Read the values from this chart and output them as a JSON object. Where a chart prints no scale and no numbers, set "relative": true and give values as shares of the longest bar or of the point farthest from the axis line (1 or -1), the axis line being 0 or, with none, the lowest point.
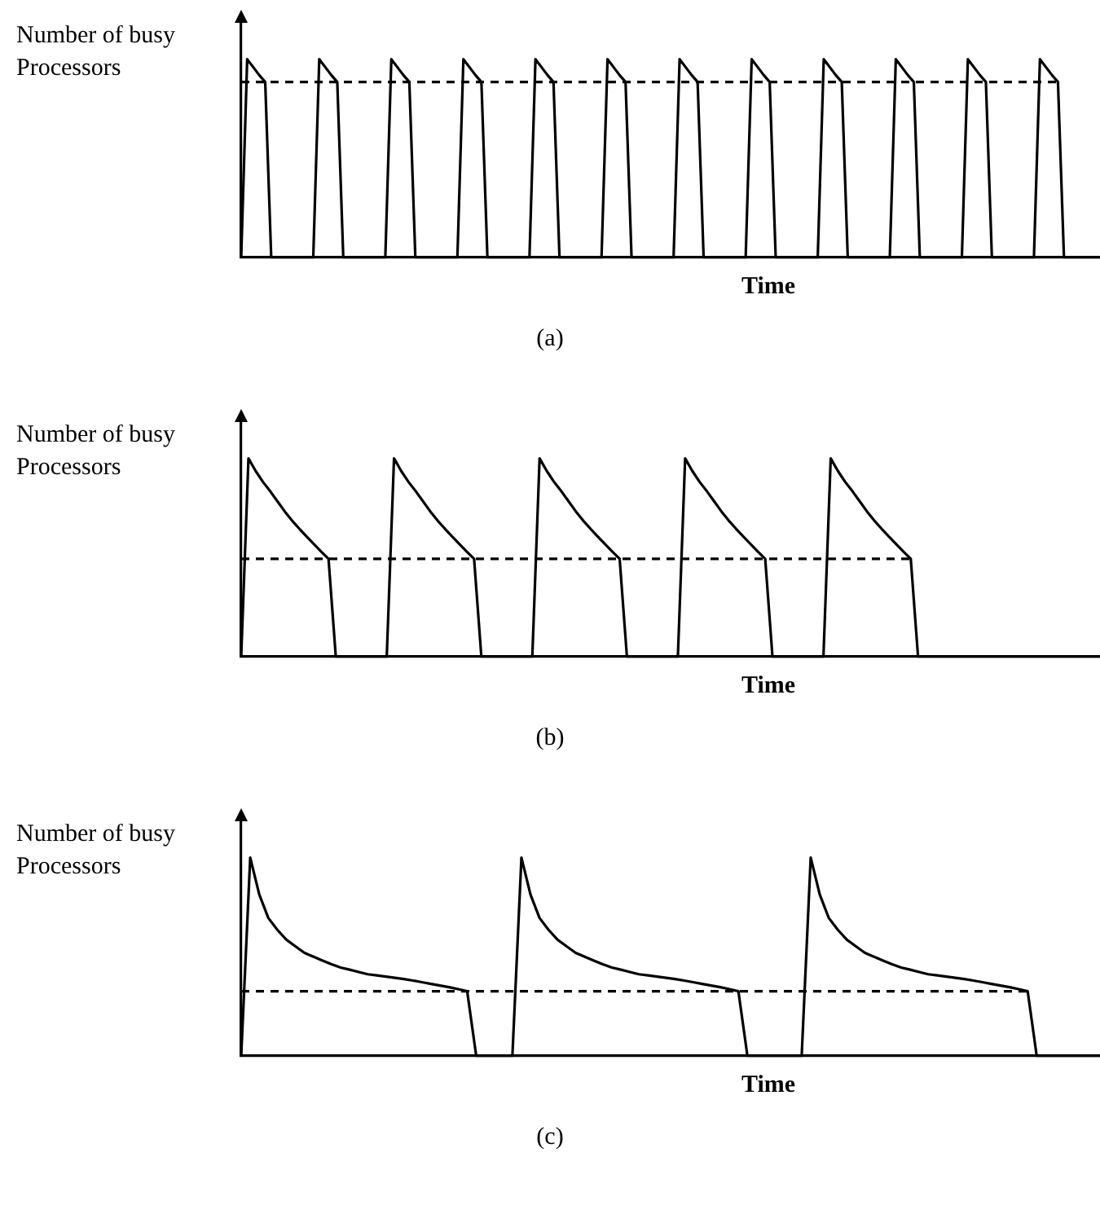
{
  "chart_data": [
    {
      "type": "line",
      "title": "(a)",
      "xlabel": "Time",
      "ylabel": "Number of busy Processors",
      "relative": true,
      "tick_labels": false,
      "grid": false,
      "legend": false,
      "marker": "none",
      "categories": [
        null,
        null,
        null,
        null,
        null,
        null,
        null,
        null,
        null,
        null,
        null,
        null,
        null,
        null,
        null,
        null,
        null,
        null,
        null,
        null,
        null,
        null,
        null,
        null,
        null,
        null,
        null,
        null,
        null,
        null,
        null,
        null,
        null,
        null,
        null,
        null,
        null,
        null,
        null,
        null,
        null,
        null,
        null,
        null,
        null,
        null,
        null,
        null,
        null,
        null,
        null,
        null,
        null,
        null,
        null,
        null,
        null,
        null,
        null,
        null,
        null,
        null,
        null,
        null,
        null,
        null,
        null,
        null,
        null,
        null,
        null,
        null,
        null,
        null,
        null,
        null,
        null,
        null,
        null,
        null,
        null,
        null,
        null,
        null,
        null,
        null,
        null,
        null,
        null,
        null,
        null,
        null,
        null,
        null,
        null,
        null,
        null,
        null,
        null,
        null,
        null,
        null,
        null,
        null,
        null,
        null,
        null,
        null,
        null,
        null,
        null,
        null,
        null,
        null,
        null,
        null,
        null,
        null,
        null,
        null,
        null,
        null,
        null,
        null,
        null,
        null,
        null,
        null,
        null,
        null,
        null,
        null,
        null,
        null,
        null,
        null,
        null,
        null,
        null,
        null,
        null,
        null,
        null,
        null
      ],
      "series": [
        {
          "color": "#000000",
          "line_style": "solid",
          "values": [
            0,
            1,
            0.96,
            0.92,
            0.885,
            0,
            0,
            0,
            0,
            0,
            0,
            0,
            0,
            1,
            0.96,
            0.92,
            0.885,
            0,
            0,
            0,
            0,
            0,
            0,
            0,
            0,
            1,
            0.96,
            0.92,
            0.885,
            0,
            0,
            0,
            0,
            0,
            0,
            0,
            0,
            1,
            0.96,
            0.92,
            0.885,
            0,
            0,
            0,
            0,
            0,
            0,
            0,
            0,
            1,
            0.96,
            0.92,
            0.885,
            0,
            0,
            0,
            0,
            0,
            0,
            0,
            0,
            1,
            0.96,
            0.92,
            0.885,
            0,
            0,
            0,
            0,
            0,
            0,
            0,
            0,
            1,
            0.96,
            0.92,
            0.885,
            0,
            0,
            0,
            0,
            0,
            0,
            0,
            0,
            1,
            0.96,
            0.92,
            0.885,
            0,
            0,
            0,
            0,
            0,
            0,
            0,
            0,
            1,
            0.96,
            0.92,
            0.885,
            0,
            0,
            0,
            0,
            0,
            0,
            0,
            0,
            1,
            0.96,
            0.92,
            0.885,
            0,
            0,
            0,
            0,
            0,
            0,
            0,
            0,
            1,
            0.96,
            0.92,
            0.885,
            0,
            0,
            0,
            0,
            0,
            0,
            0,
            0,
            1,
            0.96,
            0.92,
            0.885,
            0,
            0,
            0,
            0,
            0,
            0,
            0
          ]
        },
        {
          "color": "#000000",
          "line_style": "dashed",
          "values": [
            0.885,
            0.885,
            0.885,
            0.885,
            0.885,
            0.885,
            0.885,
            0.885,
            0.885,
            0.885,
            0.885,
            0.885,
            0.885,
            0.885,
            0.885,
            0.885,
            0.885,
            0.885,
            0.885,
            0.885,
            0.885,
            0.885,
            0.885,
            0.885,
            0.885,
            0.885,
            0.885,
            0.885,
            0.885,
            0.885,
            0.885,
            0.885,
            0.885,
            0.885,
            0.885,
            0.885,
            0.885,
            0.885,
            0.885,
            0.885,
            0.885,
            0.885,
            0.885,
            0.885,
            0.885,
            0.885,
            0.885,
            0.885,
            0.885,
            0.885,
            0.885,
            0.885,
            0.885,
            0.885,
            0.885,
            0.885,
            0.885,
            0.885,
            0.885,
            0.885,
            0.885,
            0.885,
            0.885,
            0.885,
            0.885,
            0.885,
            0.885,
            0.885,
            0.885,
            0.885,
            0.885,
            0.885,
            0.885,
            0.885,
            0.885,
            0.885,
            0.885,
            0.885,
            0.885,
            0.885,
            0.885,
            0.885,
            0.885,
            0.885,
            0.885,
            0.885,
            0.885,
            0.885,
            0.885,
            0.885,
            0.885,
            0.885,
            0.885,
            0.885,
            0.885,
            0.885,
            0.885,
            0.885,
            0.885,
            0.885,
            0.885,
            0.885,
            0.885,
            0.885,
            0.885,
            0.885,
            0.885,
            0.885,
            0.885,
            0.885,
            0.885,
            0.885,
            0.885,
            0.885,
            0.885,
            0.885,
            0.885,
            0.885,
            0.885,
            0.885,
            0.885,
            0.885,
            0.885,
            0.885,
            0.885,
            0.885,
            0.885,
            0.885,
            0.885,
            0.885,
            0.885,
            0.885,
            0.885,
            0.885,
            0.885,
            0.885,
            0.885,
            null,
            null,
            null,
            null,
            null,
            null,
            null
          ]
        }
      ]
    },
    {
      "type": "line",
      "title": "(b)",
      "xlabel": "Time",
      "ylabel": "Number of busy Processors",
      "relative": true,
      "tick_labels": false,
      "grid": false,
      "legend": false,
      "marker": "none",
      "categories": [
        null,
        null,
        null,
        null,
        null,
        null,
        null,
        null,
        null,
        null,
        null,
        null,
        null,
        null,
        null,
        null,
        null,
        null,
        null,
        null,
        null,
        null,
        null,
        null,
        null,
        null,
        null,
        null,
        null,
        null,
        null,
        null,
        null,
        null,
        null,
        null,
        null,
        null,
        null,
        null,
        null,
        null,
        null,
        null,
        null,
        null,
        null,
        null,
        null,
        null,
        null,
        null,
        null,
        null,
        null,
        null,
        null,
        null,
        null,
        null,
        null,
        null,
        null,
        null,
        null,
        null,
        null,
        null,
        null,
        null,
        null,
        null,
        null,
        null,
        null,
        null,
        null,
        null,
        null,
        null,
        null,
        null,
        null,
        null,
        null,
        null,
        null,
        null,
        null,
        null,
        null,
        null,
        null,
        null,
        null,
        null,
        null,
        null,
        null,
        null,
        null,
        null,
        null,
        null,
        null,
        null,
        null,
        null,
        null,
        null,
        null,
        null,
        null,
        null,
        null,
        null,
        null,
        null,
        null
      ],
      "series": [
        {
          "color": "#000000",
          "line_style": "solid",
          "values": [
            0,
            1,
            0.936,
            0.881,
            0.834,
            0.783,
            0.732,
            0.686,
            0.645,
            0.606,
            0.568,
            0.53,
            0.494,
            0,
            0,
            0,
            0,
            0,
            0,
            0,
            0,
            1,
            0.936,
            0.881,
            0.834,
            0.783,
            0.732,
            0.686,
            0.645,
            0.606,
            0.568,
            0.53,
            0.494,
            0,
            0,
            0,
            0,
            0,
            0,
            0,
            0,
            1,
            0.936,
            0.881,
            0.834,
            0.783,
            0.732,
            0.686,
            0.645,
            0.606,
            0.568,
            0.53,
            0.494,
            0,
            0,
            0,
            0,
            0,
            0,
            0,
            0,
            1,
            0.936,
            0.881,
            0.834,
            0.783,
            0.732,
            0.686,
            0.645,
            0.606,
            0.568,
            0.53,
            0.494,
            0,
            0,
            0,
            0,
            0,
            0,
            0,
            0,
            1,
            0.936,
            0.881,
            0.834,
            0.783,
            0.732,
            0.686,
            0.645,
            0.606,
            0.568,
            0.53,
            0.494,
            0,
            0,
            0,
            0,
            0,
            0,
            0,
            0,
            0,
            0,
            0,
            0,
            0,
            0,
            0,
            0,
            0,
            0,
            0,
            0,
            0,
            0,
            0,
            0,
            0,
            0
          ]
        },
        {
          "color": "#000000",
          "line_style": "dashed",
          "values": [
            0.494,
            0.494,
            0.494,
            0.494,
            0.494,
            0.494,
            0.494,
            0.494,
            0.494,
            0.494,
            0.494,
            0.494,
            0.494,
            0.494,
            0.494,
            0.494,
            0.494,
            0.494,
            0.494,
            0.494,
            0.494,
            0.494,
            0.494,
            0.494,
            0.494,
            0.494,
            0.494,
            0.494,
            0.494,
            0.494,
            0.494,
            0.494,
            0.494,
            0.494,
            0.494,
            0.494,
            0.494,
            0.494,
            0.494,
            0.494,
            0.494,
            0.494,
            0.494,
            0.494,
            0.494,
            0.494,
            0.494,
            0.494,
            0.494,
            0.494,
            0.494,
            0.494,
            0.494,
            0.494,
            0.494,
            0.494,
            0.494,
            0.494,
            0.494,
            0.494,
            0.494,
            0.494,
            0.494,
            0.494,
            0.494,
            0.494,
            0.494,
            0.494,
            0.494,
            0.494,
            0.494,
            0.494,
            0.494,
            0.494,
            0.494,
            0.494,
            0.494,
            0.494,
            0.494,
            0.494,
            0.494,
            0.494,
            0.494,
            0.494,
            0.494,
            0.494,
            0.494,
            0.494,
            0.494,
            0.494,
            0.494,
            0.494,
            0.494,
            null,
            null,
            null,
            null,
            null,
            null,
            null,
            null,
            null,
            null,
            null,
            null,
            null,
            null,
            null,
            null,
            null,
            null,
            null,
            null,
            null,
            null,
            null,
            null,
            null,
            null
          ]
        }
      ]
    },
    {
      "type": "line",
      "title": "(c)",
      "xlabel": "Time",
      "ylabel": "Number of busy Processors",
      "relative": true,
      "tick_labels": false,
      "grid": false,
      "legend": false,
      "marker": "none",
      "categories": [
        null,
        null,
        null,
        null,
        null,
        null,
        null,
        null,
        null,
        null,
        null,
        null,
        null,
        null,
        null,
        null,
        null,
        null,
        null,
        null,
        null,
        null,
        null,
        null,
        null,
        null,
        null,
        null,
        null,
        null,
        null,
        null,
        null,
        null,
        null,
        null,
        null,
        null,
        null,
        null,
        null,
        null,
        null,
        null,
        null,
        null,
        null,
        null,
        null,
        null,
        null,
        null,
        null,
        null,
        null,
        null,
        null,
        null,
        null,
        null,
        null,
        null,
        null,
        null,
        null,
        null,
        null,
        null,
        null,
        null,
        null,
        null,
        null,
        null,
        null,
        null,
        null,
        null,
        null,
        null,
        null,
        null,
        null,
        null,
        null,
        null,
        null,
        null,
        null,
        null,
        null,
        null,
        null,
        null,
        null,
        null
      ],
      "series": [
        {
          "color": "#000000",
          "line_style": "solid",
          "values": [
            0,
            1,
            0.814,
            0.696,
            0.636,
            0.586,
            0.553,
            0.52,
            0.5,
            0.481,
            0.462,
            0.446,
            0.435,
            0.423,
            0.412,
            0.406,
            0.4,
            0.394,
            0.388,
            0.38,
            0.372,
            0.363,
            0.355,
            0.347,
            0.337,
            0.326,
            0,
            0,
            0,
            0,
            0,
            1,
            0.814,
            0.696,
            0.636,
            0.586,
            0.553,
            0.52,
            0.5,
            0.481,
            0.462,
            0.446,
            0.435,
            0.423,
            0.412,
            0.406,
            0.4,
            0.394,
            0.388,
            0.38,
            0.372,
            0.363,
            0.355,
            0.347,
            0.337,
            0.326,
            0,
            0,
            0,
            0,
            0,
            0,
            0,
            1,
            0.814,
            0.696,
            0.636,
            0.586,
            0.553,
            0.52,
            0.5,
            0.481,
            0.462,
            0.446,
            0.435,
            0.423,
            0.412,
            0.406,
            0.4,
            0.394,
            0.388,
            0.38,
            0.372,
            0.363,
            0.355,
            0.347,
            0.337,
            0.326,
            0,
            0,
            0,
            0,
            0,
            0,
            0,
            0
          ]
        },
        {
          "color": "#000000",
          "line_style": "dashed",
          "values": [
            0.326,
            0.326,
            0.326,
            0.326,
            0.326,
            0.326,
            0.326,
            0.326,
            0.326,
            0.326,
            0.326,
            0.326,
            0.326,
            0.326,
            0.326,
            0.326,
            0.326,
            0.326,
            0.326,
            0.326,
            0.326,
            0.326,
            0.326,
            0.326,
            0.326,
            0.326,
            0.326,
            0.326,
            0.326,
            0.326,
            0.326,
            0.326,
            0.326,
            0.326,
            0.326,
            0.326,
            0.326,
            0.326,
            0.326,
            0.326,
            0.326,
            0.326,
            0.326,
            0.326,
            0.326,
            0.326,
            0.326,
            0.326,
            0.326,
            0.326,
            0.326,
            0.326,
            0.326,
            0.326,
            0.326,
            0.326,
            0.326,
            0.326,
            0.326,
            0.326,
            0.326,
            0.326,
            0.326,
            0.326,
            0.326,
            0.326,
            0.326,
            0.326,
            0.326,
            0.326,
            0.326,
            0.326,
            0.326,
            0.326,
            0.326,
            0.326,
            0.326,
            0.326,
            0.326,
            0.326,
            0.326,
            0.326,
            0.326,
            0.326,
            0.326,
            0.326,
            0.326,
            0.326,
            null,
            null,
            null,
            null,
            null,
            null,
            null,
            null
          ]
        }
      ]
    }
  ]
}
